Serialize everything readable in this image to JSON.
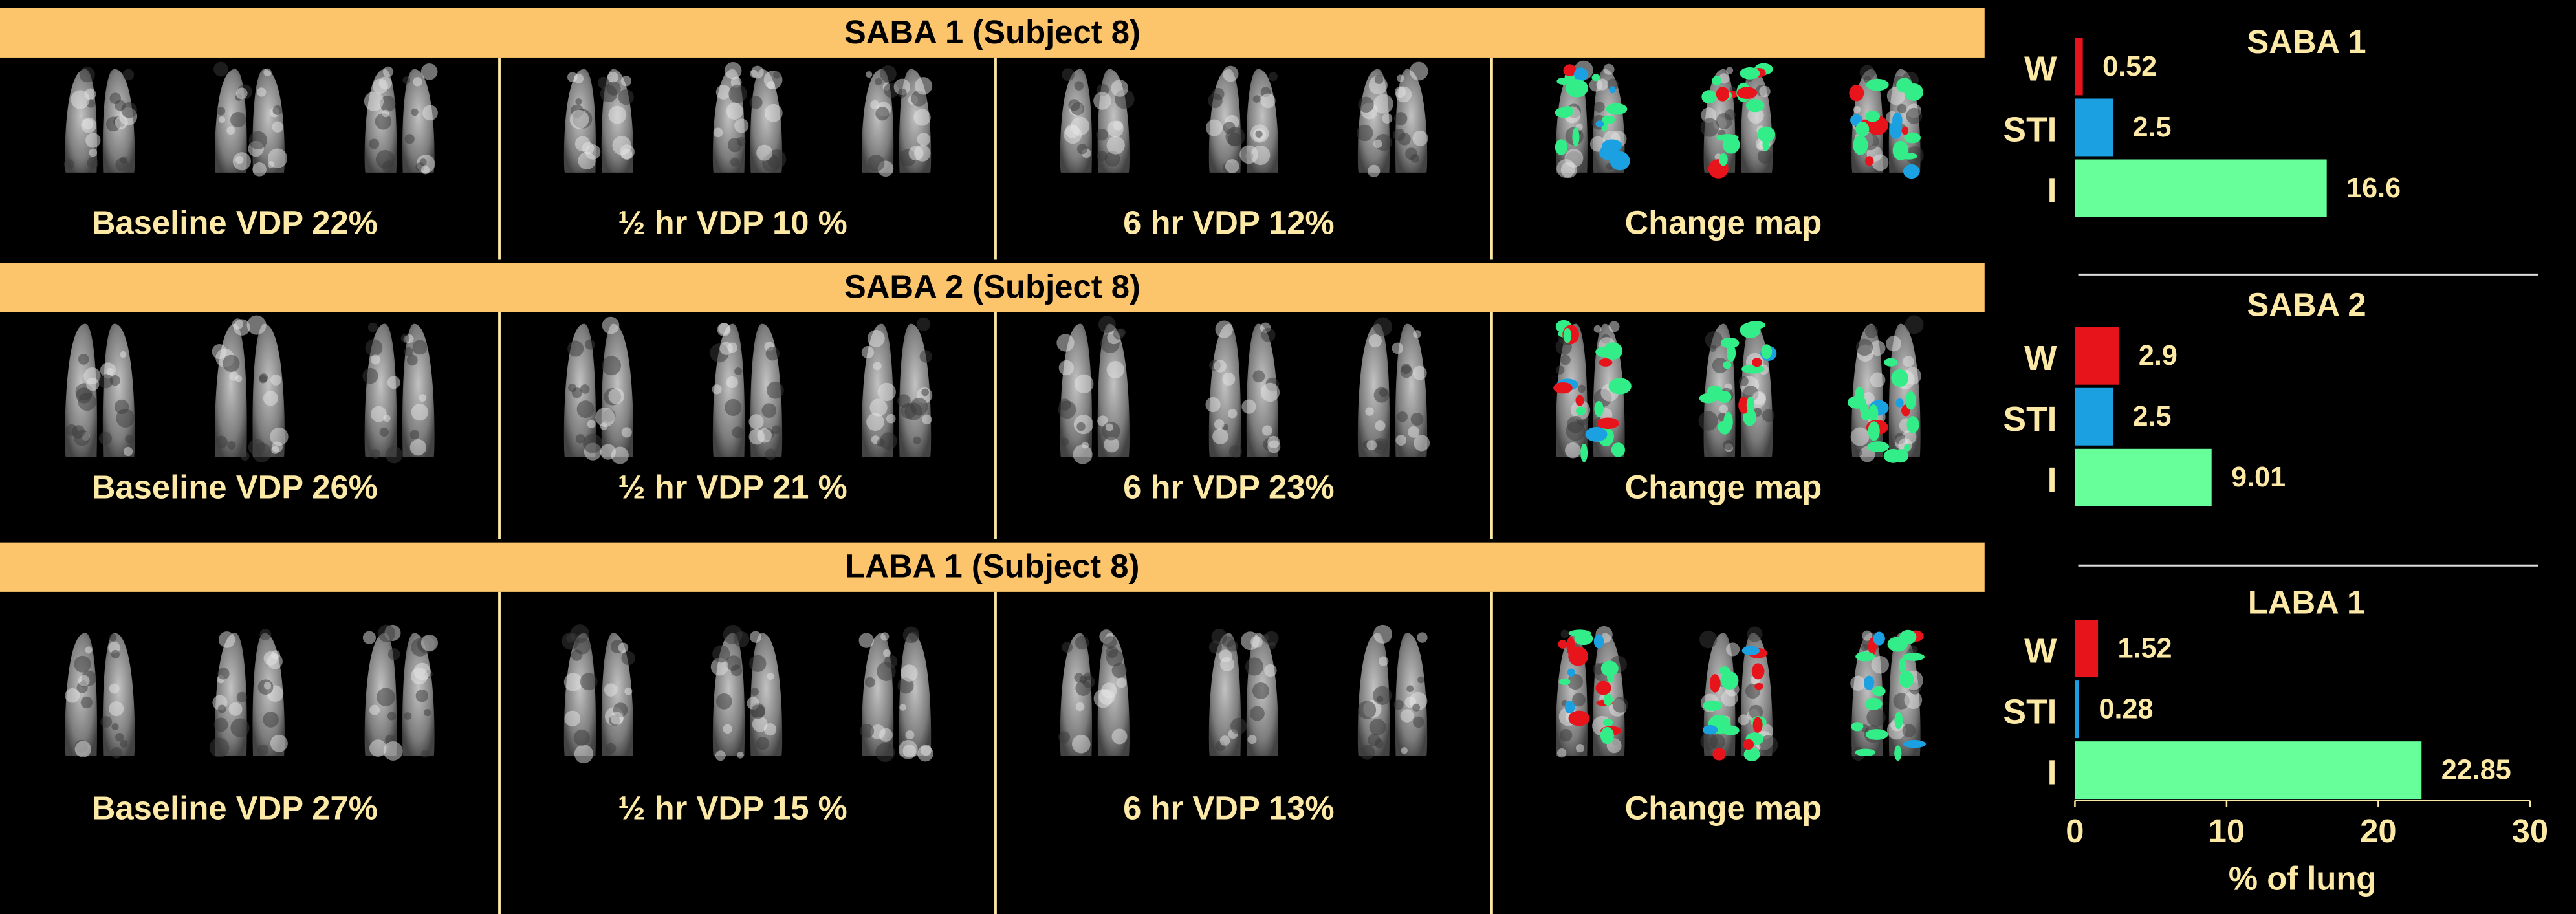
{
  "panels": [
    {
      "header": "SABA 1 (Subject 8)",
      "captions": [
        "Baseline VDP 22%",
        "½ hr VDP 10 %",
        "6 hr VDP 12%",
        "Change map"
      ]
    },
    {
      "header": "SABA 2 (Subject 8)",
      "captions": [
        "Baseline VDP 26%",
        "½ hr VDP 21 %",
        "6 hr VDP 23%",
        "Change map"
      ]
    },
    {
      "header": "LABA 1 (Subject 8)",
      "captions": [
        "Baseline VDP 27%",
        "½ hr VDP 15 %",
        "6 hr VDP 13%",
        "Change map"
      ]
    }
  ],
  "chart_data": [
    {
      "type": "bar",
      "orientation": "horizontal",
      "title": "SABA 1",
      "categories": [
        "W",
        "STI",
        "I"
      ],
      "values": [
        0.52,
        2.5,
        16.6
      ],
      "colors": [
        "#e8141c",
        "#1ba1e2",
        "#66ff99"
      ],
      "xlim": [
        0,
        30
      ]
    },
    {
      "type": "bar",
      "orientation": "horizontal",
      "title": "SABA 2",
      "categories": [
        "W",
        "STI",
        "I"
      ],
      "values": [
        2.9,
        2.5,
        9.01
      ],
      "colors": [
        "#e8141c",
        "#1ba1e2",
        "#66ff99"
      ],
      "xlim": [
        0,
        30
      ]
    },
    {
      "type": "bar",
      "orientation": "horizontal",
      "title": "LABA 1",
      "categories": [
        "W",
        "STI",
        "I"
      ],
      "values": [
        1.52,
        0.28,
        22.85
      ],
      "colors": [
        "#e8141c",
        "#1ba1e2",
        "#66ff99"
      ],
      "xlim": [
        0,
        30
      ],
      "xticks": [
        0,
        10,
        20,
        30
      ],
      "xlabel": "% of lung"
    }
  ]
}
